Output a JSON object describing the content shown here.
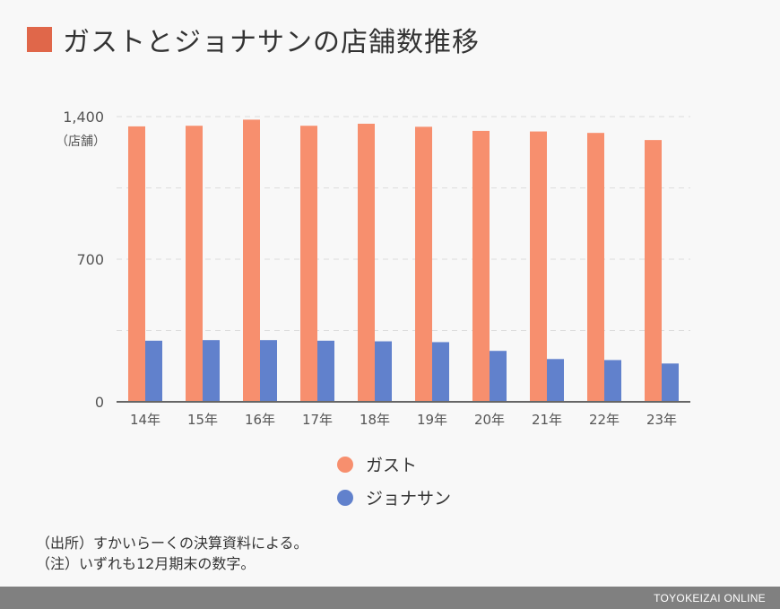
{
  "title": "ガストとジョナサンの店舗数推移",
  "colors": {
    "accent": "#e0674a",
    "gusto": "#f78f6e",
    "jonathan": "#6181cc",
    "grid": "#dddddd",
    "axis": "#666666"
  },
  "chart_data": {
    "type": "bar",
    "title": "ガストとジョナサンの店舗数推移",
    "unit_label": "（店舗）",
    "categories": [
      "14年",
      "15年",
      "16年",
      "17年",
      "18年",
      "19年",
      "20年",
      "21年",
      "22年",
      "23年"
    ],
    "series": [
      {
        "name": "ガスト",
        "values": [
          1352,
          1355,
          1385,
          1355,
          1365,
          1350,
          1330,
          1327,
          1320,
          1285
        ]
      },
      {
        "name": "ジョナサン",
        "values": [
          300,
          303,
          303,
          300,
          297,
          293,
          250,
          210,
          205,
          188
        ]
      }
    ],
    "ylim": [
      0,
      1400
    ],
    "yticks": [
      0,
      700,
      1400
    ],
    "ytick_labels": [
      "0",
      "700",
      "1,400"
    ],
    "grid": true,
    "legend_position": "bottom"
  },
  "notes": [
    "（出所）すかいらーくの決算資料による。",
    "（注）いずれも12月期末の数字。"
  ],
  "footer": "TOYOKEIZAI ONLINE"
}
